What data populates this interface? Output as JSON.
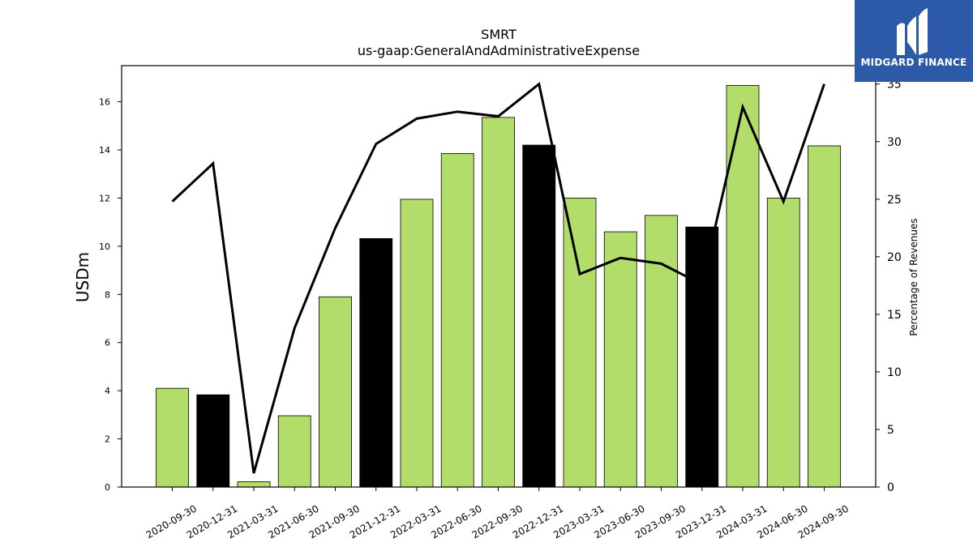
{
  "chart_data": {
    "type": "bar",
    "title": "SMRT",
    "subtitle": "us-gaap:GeneralAndAdministrativeExpense",
    "ylabel": "USDm",
    "y2label": "Percentage of Revenues",
    "ylim": [
      0,
      17.5
    ],
    "y2lim": [
      0,
      36.6
    ],
    "yticks": [
      0,
      2,
      4,
      6,
      8,
      10,
      12,
      14,
      16
    ],
    "y2ticks": [
      0,
      5,
      10,
      15,
      20,
      25,
      30,
      35
    ],
    "categories": [
      "2020-09-30",
      "2020-12-31",
      "2021-03-31",
      "2021-06-30",
      "2021-09-30",
      "2021-12-31",
      "2022-03-31",
      "2022-06-30",
      "2022-09-30",
      "2022-12-31",
      "2023-03-31",
      "2023-06-30",
      "2023-09-30",
      "2023-12-31",
      "2024-03-31",
      "2024-06-30",
      "2024-09-30"
    ],
    "series": [
      {
        "kind": "bar",
        "values": [
          4.1,
          3.83,
          0.22,
          2.96,
          7.9,
          10.32,
          11.95,
          13.85,
          15.35,
          14.2,
          12.0,
          10.6,
          11.28,
          10.8,
          16.68,
          12.0,
          14.17
        ],
        "colors": [
          "#b3dd6a",
          "#000000",
          "#b3dd6a",
          "#b3dd6a",
          "#b3dd6a",
          "#000000",
          "#b3dd6a",
          "#b3dd6a",
          "#b3dd6a",
          "#000000",
          "#b3dd6a",
          "#b3dd6a",
          "#b3dd6a",
          "#000000",
          "#b3dd6a",
          "#b3dd6a",
          "#b3dd6a"
        ]
      },
      {
        "kind": "line",
        "axis": "right",
        "color": "#000000",
        "values": [
          24.8,
          28.1,
          1.2,
          13.8,
          22.5,
          29.8,
          32.0,
          32.6,
          32.2,
          35.0,
          18.5,
          19.9,
          19.4,
          17.6,
          33.0,
          24.8,
          35.0
        ]
      }
    ],
    "grid": false,
    "legend": "none"
  },
  "logo": {
    "text": "MIDGARD FINANCE",
    "background": "#2c5aa8"
  }
}
